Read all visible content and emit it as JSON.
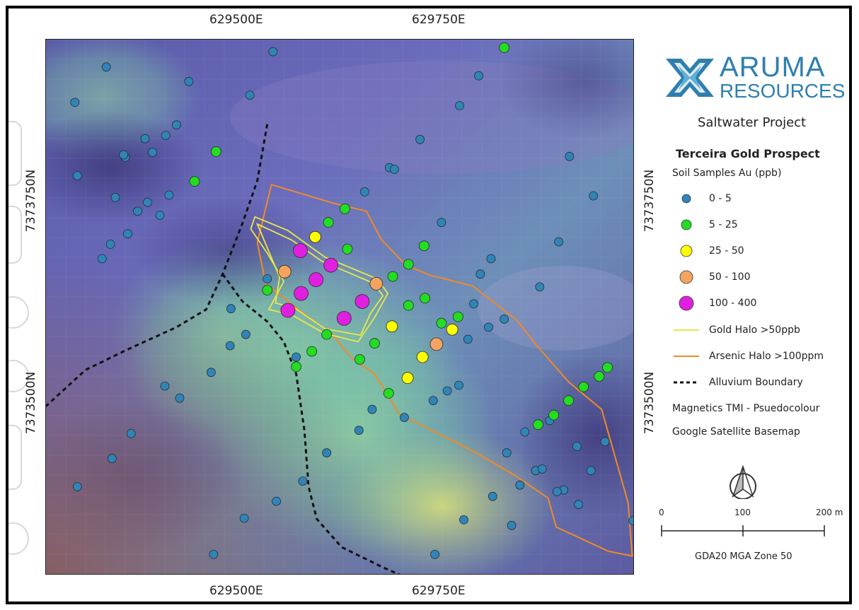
{
  "grid_labels": {
    "easting": [
      "629500E",
      "629750E"
    ],
    "northing": [
      "7373750N",
      "7373500N"
    ]
  },
  "logo": {
    "word1": "ARUMA",
    "word2": "RESOURCES",
    "color": "#2e7fb0"
  },
  "project": "Saltwater Project",
  "legend": {
    "title": "Terceira Gold Prospect",
    "subtitle": "Soil Samples Au (ppb)",
    "classes": [
      {
        "label": "0 - 5",
        "color": "#2f84b8",
        "r": 6
      },
      {
        "label": "5 - 25",
        "color": "#22dd22",
        "r": 7
      },
      {
        "label": "25 - 50",
        "color": "#ffff00",
        "r": 8
      },
      {
        "label": "50 - 100",
        "color": "#f4a460",
        "r": 9
      },
      {
        "label": "100 - 400",
        "color": "#e020e0",
        "r": 10
      }
    ],
    "lines": [
      {
        "label": "Gold Halo >50ppb",
        "color": "#e8e84a",
        "style": "solid"
      },
      {
        "label": "Arsenic Halo >100ppm",
        "color": "#f08a28",
        "style": "solid"
      },
      {
        "label": "Alluvium Boundary",
        "color": "#111111",
        "style": "dashed"
      }
    ],
    "notes": [
      "Magnetics TMI - Psuedocolour",
      "Google Satellite Basemap"
    ]
  },
  "scale_bar": {
    "labels": [
      "0",
      "100",
      "200 m"
    ]
  },
  "datum": "GDA20 MGA Zone 50",
  "samples": [
    {
      "e": 629297,
      "n": 7373877,
      "au": 2
    },
    {
      "e": 629335,
      "n": 7373921,
      "au": 3
    },
    {
      "e": 629382,
      "n": 7373832,
      "au": 1
    },
    {
      "e": 629435,
      "n": 7373903,
      "au": 4
    },
    {
      "e": 629509,
      "n": 7373886,
      "au": 2
    },
    {
      "e": 629537,
      "n": 7373940,
      "au": 3
    },
    {
      "e": 629300,
      "n": 7373786,
      "au": 2
    },
    {
      "e": 629346,
      "n": 7373759,
      "au": 1
    },
    {
      "e": 629356,
      "n": 7373812,
      "au": 3
    },
    {
      "e": 629391,
      "n": 7373815,
      "au": 2
    },
    {
      "e": 629407,
      "n": 7373836,
      "au": 1
    },
    {
      "e": 629420,
      "n": 7373849,
      "au": 3
    },
    {
      "e": 629442,
      "n": 7373779,
      "au": 12
    },
    {
      "e": 629468,
      "n": 7373816,
      "au": 15
    },
    {
      "e": 629358,
      "n": 7373809,
      "au": 1
    },
    {
      "e": 629373,
      "n": 7373742,
      "au": 2
    },
    {
      "e": 629385,
      "n": 7373753,
      "au": 1
    },
    {
      "e": 629400,
      "n": 7373737,
      "au": 3
    },
    {
      "e": 629411,
      "n": 7373762,
      "au": 2
    },
    {
      "e": 629330,
      "n": 7373683,
      "au": 1
    },
    {
      "e": 629340,
      "n": 7373701,
      "au": 2
    },
    {
      "e": 629361,
      "n": 7373714,
      "au": 3
    },
    {
      "e": 629715,
      "n": 7373831,
      "au": 1
    },
    {
      "e": 629763,
      "n": 7373873,
      "au": 2
    },
    {
      "e": 629786,
      "n": 7373910,
      "au": 1
    },
    {
      "e": 629817,
      "n": 7373945,
      "au": 18
    },
    {
      "e": 629684,
      "n": 7373794,
      "au": 3
    },
    {
      "e": 629896,
      "n": 7373810,
      "au": 2
    },
    {
      "e": 629925,
      "n": 7373761,
      "au": 1
    },
    {
      "e": 629883,
      "n": 7373704,
      "au": 3
    },
    {
      "e": 629860,
      "n": 7373648,
      "au": 2
    },
    {
      "e": 629817,
      "n": 7373608,
      "au": 1
    },
    {
      "e": 629798,
      "n": 7373598,
      "au": 2
    },
    {
      "e": 629773,
      "n": 7373583,
      "au": 3
    },
    {
      "e": 629762,
      "n": 7373526,
      "au": 2
    },
    {
      "e": 629748,
      "n": 7373519,
      "au": 1
    },
    {
      "e": 629731,
      "n": 7373507,
      "au": 2
    },
    {
      "e": 629696,
      "n": 7373486,
      "au": 3
    },
    {
      "e": 629657,
      "n": 7373496,
      "au": 1
    },
    {
      "e": 629641,
      "n": 7373470,
      "au": 2
    },
    {
      "e": 629602,
      "n": 7373442,
      "au": 3
    },
    {
      "e": 629565,
      "n": 7373561,
      "au": 1
    },
    {
      "e": 629504,
      "n": 7373589,
      "au": 2
    },
    {
      "e": 629485,
      "n": 7373575,
      "au": 1
    },
    {
      "e": 629462,
      "n": 7373542,
      "au": 2
    },
    {
      "e": 629424,
      "n": 7373510,
      "au": 3
    },
    {
      "e": 629406,
      "n": 7373525,
      "au": 1
    },
    {
      "e": 629365,
      "n": 7373466,
      "au": 2
    },
    {
      "e": 629342,
      "n": 7373435,
      "au": 1
    },
    {
      "e": 629300,
      "n": 7373400,
      "au": 3
    },
    {
      "e": 629465,
      "n": 7373316,
      "au": 2
    },
    {
      "e": 629502,
      "n": 7373361,
      "au": 1
    },
    {
      "e": 629541,
      "n": 7373382,
      "au": 3
    },
    {
      "e": 629573,
      "n": 7373407,
      "au": 2
    },
    {
      "e": 629733,
      "n": 7373316,
      "au": 1
    },
    {
      "e": 629768,
      "n": 7373359,
      "au": 2
    },
    {
      "e": 629803,
      "n": 7373388,
      "au": 3
    },
    {
      "e": 629820,
      "n": 7373442,
      "au": 1
    },
    {
      "e": 629836,
      "n": 7373402,
      "au": 2
    },
    {
      "e": 629842,
      "n": 7373468,
      "au": 3
    },
    {
      "e": 629855,
      "n": 7373420,
      "au": 1
    },
    {
      "e": 629863,
      "n": 7373422,
      "au": 2
    },
    {
      "e": 629872,
      "n": 7373482,
      "au": 3
    },
    {
      "e": 629889,
      "n": 7373396,
      "au": 1
    },
    {
      "e": 629905,
      "n": 7373450,
      "au": 2
    },
    {
      "e": 629922,
      "n": 7373420,
      "au": 1
    },
    {
      "e": 629939,
      "n": 7373456,
      "au": 3
    },
    {
      "e": 629973,
      "n": 7373358,
      "au": 2
    },
    {
      "e": 629907,
      "n": 7373378,
      "au": 1
    },
    {
      "e": 629881,
      "n": 7373394,
      "au": 3
    },
    {
      "e": 629826,
      "n": 7373352,
      "au": 2
    },
    {
      "e": 629648,
      "n": 7373766,
      "au": 2
    },
    {
      "e": 629624,
      "n": 7373745,
      "au": 14
    },
    {
      "e": 629604,
      "n": 7373728,
      "au": 20
    },
    {
      "e": 629588,
      "n": 7373710,
      "au": 35
    },
    {
      "e": 629570,
      "n": 7373693,
      "au": 260
    },
    {
      "e": 629551,
      "n": 7373667,
      "au": 75
    },
    {
      "e": 629627,
      "n": 7373695,
      "au": 10
    },
    {
      "e": 629607,
      "n": 7373675,
      "au": 180
    },
    {
      "e": 629589,
      "n": 7373657,
      "au": 320
    },
    {
      "e": 629571,
      "n": 7373640,
      "au": 210
    },
    {
      "e": 629555,
      "n": 7373619,
      "au": 150
    },
    {
      "e": 629530,
      "n": 7373644,
      "au": 8
    },
    {
      "e": 629662,
      "n": 7373652,
      "au": 60
    },
    {
      "e": 629645,
      "n": 7373630,
      "au": 240
    },
    {
      "e": 629623,
      "n": 7373609,
      "au": 190
    },
    {
      "e": 629602,
      "n": 7373589,
      "au": 16
    },
    {
      "e": 629584,
      "n": 7373568,
      "au": 9
    },
    {
      "e": 629565,
      "n": 7373549,
      "au": 12
    },
    {
      "e": 629682,
      "n": 7373661,
      "au": 11
    },
    {
      "e": 629701,
      "n": 7373676,
      "au": 7
    },
    {
      "e": 629720,
      "n": 7373699,
      "au": 13
    },
    {
      "e": 629741,
      "n": 7373728,
      "au": 2
    },
    {
      "e": 629701,
      "n": 7373625,
      "au": 18
    },
    {
      "e": 629681,
      "n": 7373599,
      "au": 30
    },
    {
      "e": 629660,
      "n": 7373578,
      "au": 10
    },
    {
      "e": 629642,
      "n": 7373558,
      "au": 21
    },
    {
      "e": 629721,
      "n": 7373634,
      "au": 6
    },
    {
      "e": 629741,
      "n": 7373603,
      "au": 16
    },
    {
      "e": 629761,
      "n": 7373611,
      "au": 15
    },
    {
      "e": 629780,
      "n": 7373627,
      "au": 2
    },
    {
      "e": 629754,
      "n": 7373595,
      "au": 28
    },
    {
      "e": 629735,
      "n": 7373577,
      "au": 70
    },
    {
      "e": 629718,
      "n": 7373561,
      "au": 40
    },
    {
      "e": 629700,
      "n": 7373535,
      "au": 45
    },
    {
      "e": 629677,
      "n": 7373516,
      "au": 20
    },
    {
      "e": 629678,
      "n": 7373796,
      "au": 1
    },
    {
      "e": 629788,
      "n": 7373664,
      "au": 3
    },
    {
      "e": 629801,
      "n": 7373683,
      "au": 2
    },
    {
      "e": 629858,
      "n": 7373477,
      "au": 14
    },
    {
      "e": 629877,
      "n": 7373489,
      "au": 12
    },
    {
      "e": 629895,
      "n": 7373507,
      "au": 18
    },
    {
      "e": 629913,
      "n": 7373524,
      "au": 22
    },
    {
      "e": 629932,
      "n": 7373537,
      "au": 11
    },
    {
      "e": 629942,
      "n": 7373548,
      "au": 9
    },
    {
      "e": 629530,
      "n": 7373658,
      "au": 3
    },
    {
      "e": 629486,
      "n": 7373621,
      "au": 1
    }
  ],
  "gold_halo": [
    [
      629515,
      7373735
    ],
    [
      629555,
      7373718
    ],
    [
      629600,
      7373685
    ],
    [
      629663,
      7373658
    ],
    [
      629676,
      7373640
    ],
    [
      629660,
      7373610
    ],
    [
      629640,
      7373580
    ],
    [
      629600,
      7373590
    ],
    [
      629560,
      7373613
    ],
    [
      629532,
      7373620
    ],
    [
      629550,
      7373655
    ],
    [
      629530,
      7373690
    ],
    [
      629510,
      7373720
    ]
  ],
  "gold_halo_inner": [
    [
      629518,
      7373726
    ],
    [
      629560,
      7373706
    ],
    [
      629596,
      7373680
    ],
    [
      629660,
      7373652
    ],
    [
      629670,
      7373637
    ],
    [
      629655,
      7373615
    ],
    [
      629643,
      7373588
    ],
    [
      629600,
      7373596
    ],
    [
      629563,
      7373622
    ],
    [
      629540,
      7373628
    ],
    [
      629545,
      7373660
    ]
  ],
  "arsenic_halo": [
    [
      629535,
      7373775
    ],
    [
      629610,
      7373752
    ],
    [
      629650,
      7373742
    ],
    [
      629668,
      7373707
    ],
    [
      629698,
      7373675
    ],
    [
      629726,
      7373663
    ],
    [
      629779,
      7373649
    ],
    [
      629832,
      7373607
    ],
    [
      629855,
      7373577
    ],
    [
      629895,
      7373530
    ],
    [
      629935,
      7373496
    ],
    [
      629967,
      7373380
    ],
    [
      629972,
      7373314
    ],
    [
      629943,
      7373320
    ],
    [
      629880,
      7373350
    ],
    [
      629870,
      7373386
    ],
    [
      629830,
      7373414
    ],
    [
      629780,
      7373444
    ],
    [
      629690,
      7373490
    ],
    [
      629660,
      7373540
    ],
    [
      629632,
      7373560
    ],
    [
      629608,
      7373590
    ],
    [
      629570,
      7373618
    ],
    [
      629528,
      7373652
    ],
    [
      629518,
      7373703
    ]
  ],
  "alluvium_boundary": [
    [
      [
        629530,
        7373850
      ],
      [
        629518,
        7373780
      ],
      [
        629500,
        7373727
      ],
      [
        629476,
        7373664
      ],
      [
        629456,
        7373620
      ],
      [
        629420,
        7373598
      ],
      [
        629360,
        7373570
      ],
      [
        629310,
        7373545
      ],
      [
        629262,
        7373500
      ]
    ],
    [
      [
        629476,
        7373664
      ],
      [
        629500,
        7373630
      ],
      [
        629530,
        7373605
      ],
      [
        629550,
        7373580
      ],
      [
        629565,
        7373540
      ],
      [
        629575,
        7373470
      ],
      [
        629580,
        7373400
      ],
      [
        629590,
        7373360
      ],
      [
        629620,
        7373325
      ],
      [
        629670,
        7373300
      ],
      [
        629692,
        7373290
      ]
    ]
  ]
}
